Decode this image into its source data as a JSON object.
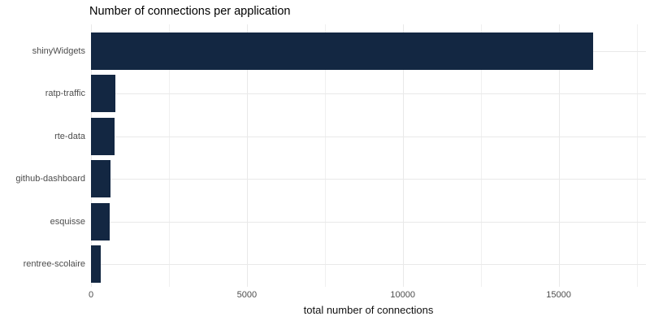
{
  "chart_data": {
    "type": "bar",
    "orientation": "horizontal",
    "title": "Number of connections per application",
    "xlabel": "total number of connections",
    "ylabel": "",
    "categories": [
      "shinyWidgets",
      "ratp-traffic",
      "rte-data",
      "github-dashboard",
      "esquisse",
      "rentree-scolaire"
    ],
    "values": [
      16100,
      780,
      750,
      625,
      600,
      310
    ],
    "xlim": [
      0,
      17800
    ],
    "xticks": [
      0,
      5000,
      10000,
      15000
    ],
    "xtick_labels": [
      "0",
      "5000",
      "10000",
      "15000"
    ],
    "minor_xticks": [
      2500,
      7500,
      12500,
      17500
    ],
    "grid": true,
    "legend": false,
    "colors": {
      "bar": "#132742",
      "grid_major": "#e9e9e9",
      "grid_minor": "#f0f0f0",
      "axis_text": "#4d4d4d",
      "title_text": "#000000",
      "axis_title_text": "#111111",
      "background": "#ffffff"
    }
  }
}
